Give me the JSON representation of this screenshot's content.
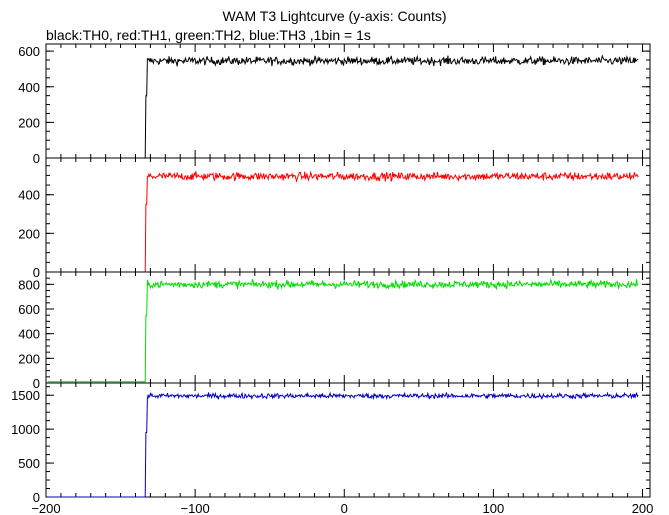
{
  "chart_data": {
    "type": "line",
    "title": "WAM T3 Lightcurve (y-axis: Counts)",
    "subtitle": "black:TH0, red:TH1, green:TH2, blue:TH3 ,1bin = 1s",
    "xlabel": "",
    "ylabel": "",
    "xlim": [
      -200,
      205
    ],
    "x_ticks": [
      -200,
      -100,
      0,
      100,
      200
    ],
    "x_tick_labels": [
      "−200",
      "−100",
      "0",
      "100",
      "200"
    ],
    "grid": false,
    "panels": [
      {
        "name": "TH0",
        "color": "#000000",
        "ylim": [
          0,
          640
        ],
        "y_ticks": [
          0,
          200,
          400,
          600
        ],
        "y_tick_labels": [
          "0",
          "200",
          "400",
          "600"
        ],
        "baseline": 0,
        "onset_x": -133,
        "pre_onset_step": 350,
        "plateau_mean": 545,
        "noise": 22
      },
      {
        "name": "TH1",
        "color": "#ff0000",
        "ylim": [
          0,
          590
        ],
        "y_ticks": [
          0,
          200,
          400
        ],
        "y_tick_labels": [
          "0",
          "200",
          "400"
        ],
        "baseline": 0,
        "onset_x": -133,
        "pre_onset_step": 350,
        "plateau_mean": 495,
        "noise": 20
      },
      {
        "name": "TH2",
        "color": "#00dd00",
        "ylim": [
          0,
          900
        ],
        "y_ticks": [
          0,
          200,
          400,
          600,
          800
        ],
        "y_tick_labels": [
          "0",
          "200",
          "400",
          "600",
          "800"
        ],
        "baseline": 10,
        "onset_x": -133,
        "pre_onset_step": 550,
        "plateau_mean": 800,
        "noise": 28
      },
      {
        "name": "TH3",
        "color": "#0000cc",
        "ylim": [
          0,
          1680
        ],
        "y_ticks": [
          0,
          500,
          1000,
          1500
        ],
        "y_tick_labels": [
          "0",
          "500",
          "1000",
          "1500"
        ],
        "baseline": 0,
        "onset_x": -133,
        "pre_onset_step": 950,
        "plateau_mean": 1490,
        "noise": 35
      }
    ]
  }
}
